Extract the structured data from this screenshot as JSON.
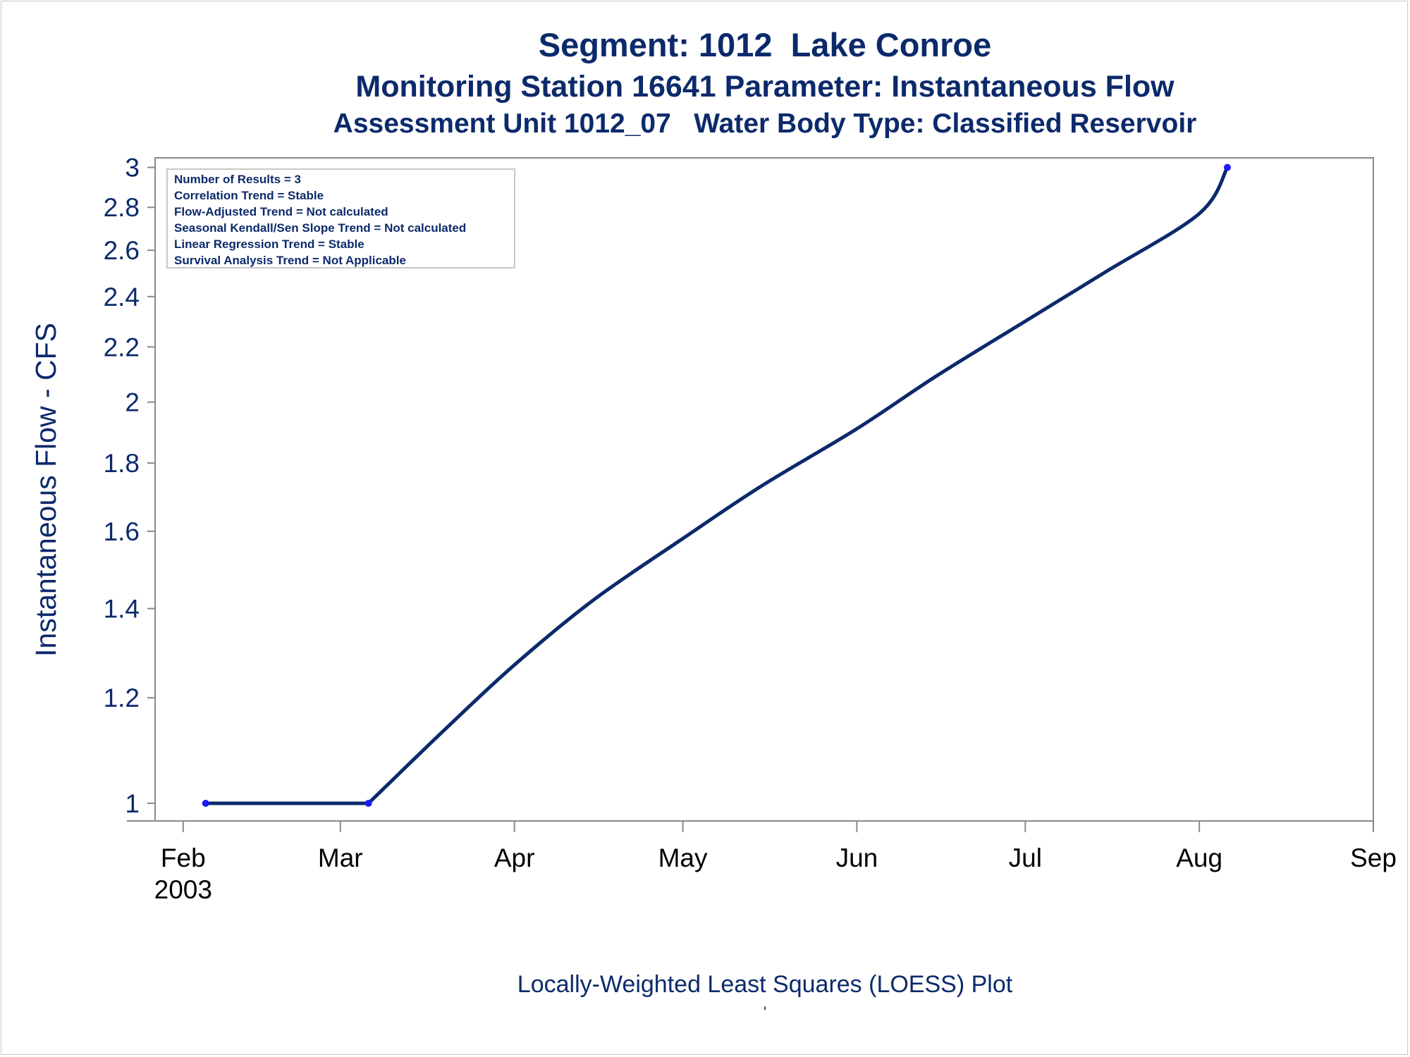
{
  "titles": {
    "line1": "Segment: 1012  Lake Conroe",
    "line2": "Monitoring Station 16641 Parameter: Instantaneous Flow",
    "line3": "Assessment Unit 1012_07   Water Body Type: Classified Reservoir"
  },
  "info_box": [
    "Number of Results = 3",
    "Correlation Trend = Stable",
    "Flow-Adjusted Trend = Not calculated",
    "Seasonal Kendall/Sen Slope Trend = Not calculated",
    "Linear Regression Trend = Stable",
    "Survival Analysis Trend = Not Applicable"
  ],
  "footnote": "Locally-Weighted Least Squares (LOESS) Plot",
  "footnote_mark": "'",
  "colors": {
    "text": "#0c2a6b",
    "line": "#0c2a6b",
    "marker": "#1a1aff",
    "axis": "#8a8a8a"
  },
  "chart_data": {
    "type": "line",
    "ylabel": "Instantaneous Flow - CFS",
    "xlabel": "",
    "y_scale": "log",
    "ylim": [
      0.97,
      3.05
    ],
    "y_ticks": [
      1,
      1.2,
      1.4,
      1.6,
      1.8,
      2,
      2.2,
      2.4,
      2.6,
      2.8,
      3
    ],
    "y_tick_labels": [
      "1",
      "1.2",
      "1.4",
      "1.6",
      "1.8",
      "2",
      "2.2",
      "2.4",
      "2.6",
      "2.8",
      "3"
    ],
    "x_ticks": [
      "2003-02-01",
      "2003-03-01",
      "2003-04-01",
      "2003-05-01",
      "2003-06-01",
      "2003-07-01",
      "2003-08-01",
      "2003-09-01"
    ],
    "x_tick_labels": [
      "Feb\n2003",
      "Mar",
      "Apr",
      "May",
      "Jun",
      "Jul",
      "Aug",
      "Sep"
    ],
    "xlim": [
      "2003-01-27",
      "2003-09-01"
    ],
    "grid": false,
    "points": [
      {
        "x": "2003-02-05",
        "y": 1
      },
      {
        "x": "2003-03-06",
        "y": 1
      },
      {
        "x": "2003-08-06",
        "y": 3
      }
    ],
    "loess_curve": [
      {
        "x": "2003-02-05",
        "y": 1.0
      },
      {
        "x": "2003-03-06",
        "y": 1.0
      },
      {
        "x": "2003-03-20",
        "y": 1.14
      },
      {
        "x": "2003-04-01",
        "y": 1.27
      },
      {
        "x": "2003-04-15",
        "y": 1.42
      },
      {
        "x": "2003-05-01",
        "y": 1.58
      },
      {
        "x": "2003-05-15",
        "y": 1.73
      },
      {
        "x": "2003-06-01",
        "y": 1.91
      },
      {
        "x": "2003-06-15",
        "y": 2.09
      },
      {
        "x": "2003-07-01",
        "y": 2.3
      },
      {
        "x": "2003-07-15",
        "y": 2.5
      },
      {
        "x": "2003-08-01",
        "y": 2.77
      },
      {
        "x": "2003-08-06",
        "y": 3.0
      }
    ]
  }
}
